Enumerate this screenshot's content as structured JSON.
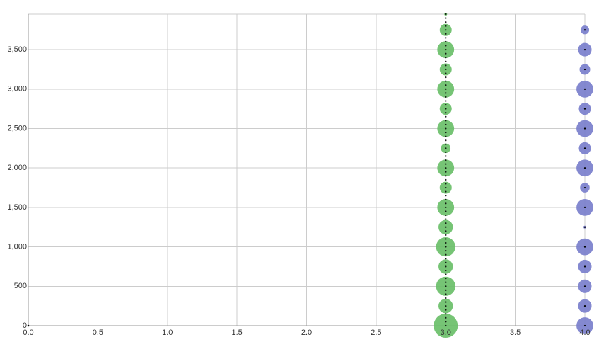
{
  "chart_data": {
    "type": "scatter",
    "title": "",
    "xlabel": "",
    "ylabel": "",
    "xlim": [
      0,
      4
    ],
    "ylim": [
      0,
      3950
    ],
    "grid": true,
    "legend": "none",
    "x_ticks": [
      {
        "value": 0,
        "label": "0.0"
      },
      {
        "value": 0.5,
        "label": "0.5"
      },
      {
        "value": 1,
        "label": "1.0"
      },
      {
        "value": 1.5,
        "label": "1.5"
      },
      {
        "value": 2,
        "label": "2.0"
      },
      {
        "value": 2.5,
        "label": "2.5"
      },
      {
        "value": 3,
        "label": "3.0"
      },
      {
        "value": 3.5,
        "label": "3.5"
      },
      {
        "value": 4,
        "label": "4.0"
      }
    ],
    "y_ticks": [
      {
        "value": 0,
        "label": "0"
      },
      {
        "value": 500,
        "label": "500"
      },
      {
        "value": 1000,
        "label": "1,000"
      },
      {
        "value": 1500,
        "label": "1,500"
      },
      {
        "value": 2000,
        "label": "2,000"
      },
      {
        "value": 2500,
        "label": "2,500"
      },
      {
        "value": 3000,
        "label": "3,000"
      },
      {
        "value": 3500,
        "label": "3,500"
      }
    ],
    "series": [
      {
        "color": "#6abf69",
        "dot_color": "#000000",
        "x": 3,
        "y": [
          0,
          250,
          500,
          750,
          1000,
          1250,
          1500,
          1750,
          2000,
          2250,
          2500,
          2750,
          3000,
          3250,
          3500,
          3750,
          3950
        ],
        "sizes": [
          5,
          3,
          4,
          3,
          4,
          3,
          3.5,
          2.5,
          3.5,
          2,
          3.5,
          2.5,
          3.5,
          2.5,
          3.5,
          2.5,
          0.6
        ],
        "dot_step": 50
      },
      {
        "color": "#7a7fcc",
        "dot_color": "#000000",
        "x": 4,
        "y": [
          0,
          250,
          500,
          750,
          1000,
          1250,
          1500,
          1750,
          2000,
          2250,
          2500,
          2750,
          3000,
          3250,
          3500,
          3750
        ],
        "sizes": [
          3.5,
          2.8,
          2.8,
          2.8,
          3.5,
          0.6,
          3.5,
          2.0,
          3.5,
          2.5,
          3.5,
          2.5,
          3.5,
          2.2,
          2.8,
          1.8
        ]
      }
    ]
  }
}
